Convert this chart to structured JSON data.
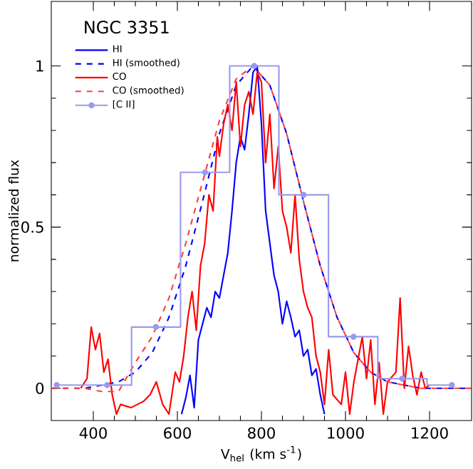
{
  "chart_data": {
    "type": "line",
    "title": "NGC 3351",
    "xlabel": "V$_{hel}$ (km s$^{-1}$)",
    "ylabel": "normalized flux",
    "xlim": [
      300,
      1300
    ],
    "ylim": [
      -0.1,
      1.2
    ],
    "xticks": [
      400,
      600,
      800,
      1000,
      1200
    ],
    "yticks": [
      0,
      0.5,
      1
    ],
    "legend": "top left",
    "grid": false,
    "series": [
      {
        "name": "HI",
        "color": "#0000ff",
        "line_style": "solid",
        "x": [
          610,
          620,
          630,
          640,
          650,
          660,
          670,
          680,
          690,
          700,
          710,
          720,
          730,
          740,
          750,
          760,
          770,
          780,
          790,
          800,
          810,
          820,
          830,
          840,
          850,
          860,
          870,
          880,
          890,
          900,
          910,
          920,
          930,
          940,
          950
        ],
        "values": [
          -0.08,
          -0.03,
          0.04,
          -0.06,
          0.15,
          0.2,
          0.25,
          0.22,
          0.3,
          0.28,
          0.35,
          0.42,
          0.55,
          0.7,
          0.78,
          0.74,
          0.85,
          0.98,
          1.0,
          0.82,
          0.55,
          0.45,
          0.35,
          0.3,
          0.2,
          0.27,
          0.22,
          0.16,
          0.18,
          0.1,
          0.12,
          0.04,
          0.06,
          -0.02,
          -0.08
        ]
      },
      {
        "name": "HI (smoothed)",
        "color": "#0000ff",
        "line_style": "dashed",
        "x": [
          300,
          340,
          380,
          420,
          460,
          500,
          540,
          580,
          620,
          660,
          700,
          740,
          780,
          820,
          860,
          900,
          940,
          980,
          1020,
          1060,
          1100,
          1140,
          1180,
          1220,
          1260,
          1300
        ],
        "values": [
          0.0,
          0.0,
          0.0,
          0.01,
          0.02,
          0.05,
          0.11,
          0.22,
          0.38,
          0.58,
          0.79,
          0.94,
          1.0,
          0.94,
          0.79,
          0.58,
          0.38,
          0.22,
          0.11,
          0.05,
          0.02,
          0.01,
          0.0,
          0.0,
          0.0,
          0.0
        ]
      },
      {
        "name": "CO",
        "color": "#ff0000",
        "line_style": "solid",
        "x": [
          370,
          385,
          395,
          405,
          415,
          425,
          435,
          445,
          455,
          465,
          475,
          490,
          505,
          520,
          535,
          550,
          565,
          580,
          595,
          605,
          615,
          625,
          635,
          645,
          655,
          665,
          675,
          685,
          695,
          700,
          710,
          720,
          730,
          740,
          750,
          760,
          770,
          780,
          790,
          800,
          810,
          820,
          830,
          840,
          850,
          860,
          870,
          880,
          890,
          900,
          910,
          920,
          930,
          940,
          950,
          960,
          970,
          980,
          990,
          1000,
          1010,
          1020,
          1030,
          1040,
          1050,
          1060,
          1070,
          1080,
          1090,
          1100,
          1110,
          1120,
          1130,
          1140,
          1150,
          1160,
          1170,
          1180,
          1190,
          1200
        ],
        "values": [
          0.0,
          0.03,
          0.19,
          0.12,
          0.17,
          0.05,
          0.09,
          -0.02,
          -0.08,
          -0.05,
          null,
          -0.06,
          null,
          -0.04,
          -0.02,
          0.02,
          -0.05,
          -0.08,
          0.05,
          0.02,
          0.1,
          0.22,
          0.3,
          0.18,
          0.38,
          0.45,
          0.6,
          0.55,
          0.78,
          0.72,
          0.82,
          0.88,
          0.8,
          0.95,
          0.75,
          0.88,
          0.92,
          0.85,
          0.98,
          0.95,
          0.7,
          0.85,
          0.62,
          0.75,
          0.55,
          0.5,
          0.42,
          0.6,
          0.4,
          0.3,
          0.25,
          0.22,
          0.1,
          0.05,
          -0.05,
          0.12,
          -0.02,
          null,
          -0.05,
          0.05,
          -0.08,
          0.02,
          null,
          0.16,
          0.03,
          0.15,
          -0.05,
          0.08,
          -0.08,
          0.02,
          null,
          0.05,
          0.28,
          0.0,
          0.13,
          0.04,
          -0.02,
          0.05,
          0.0,
          0.01
        ]
      },
      {
        "name": "CO (smoothed)",
        "color": "#ff4040",
        "line_style": "dashed",
        "x": [
          300,
          340,
          380,
          420,
          460,
          500,
          540,
          580,
          620,
          660,
          700,
          740,
          780,
          820,
          860,
          900,
          940,
          980,
          1020,
          1060,
          1100,
          1140,
          1180,
          1220,
          1260,
          1300
        ],
        "values": [
          0.0,
          0.0,
          0.0,
          -0.01,
          -0.01,
          0.08,
          0.16,
          0.28,
          0.45,
          0.64,
          0.83,
          0.96,
          1.0,
          0.94,
          0.79,
          0.58,
          0.38,
          0.22,
          0.11,
          0.05,
          0.02,
          0.01,
          0.0,
          0.0,
          0.0,
          0.0
        ]
      },
      {
        "name": "[C II]",
        "type": "step",
        "color": "#9a9aee",
        "line_style": "solid",
        "marker": "circle",
        "x": [
          313,
          433,
          549,
          666,
          783,
          900,
          1019,
          1135,
          1253
        ],
        "values": [
          0.01,
          0.01,
          0.19,
          0.67,
          1.0,
          0.6,
          0.16,
          0.03,
          0.01
        ]
      }
    ]
  }
}
